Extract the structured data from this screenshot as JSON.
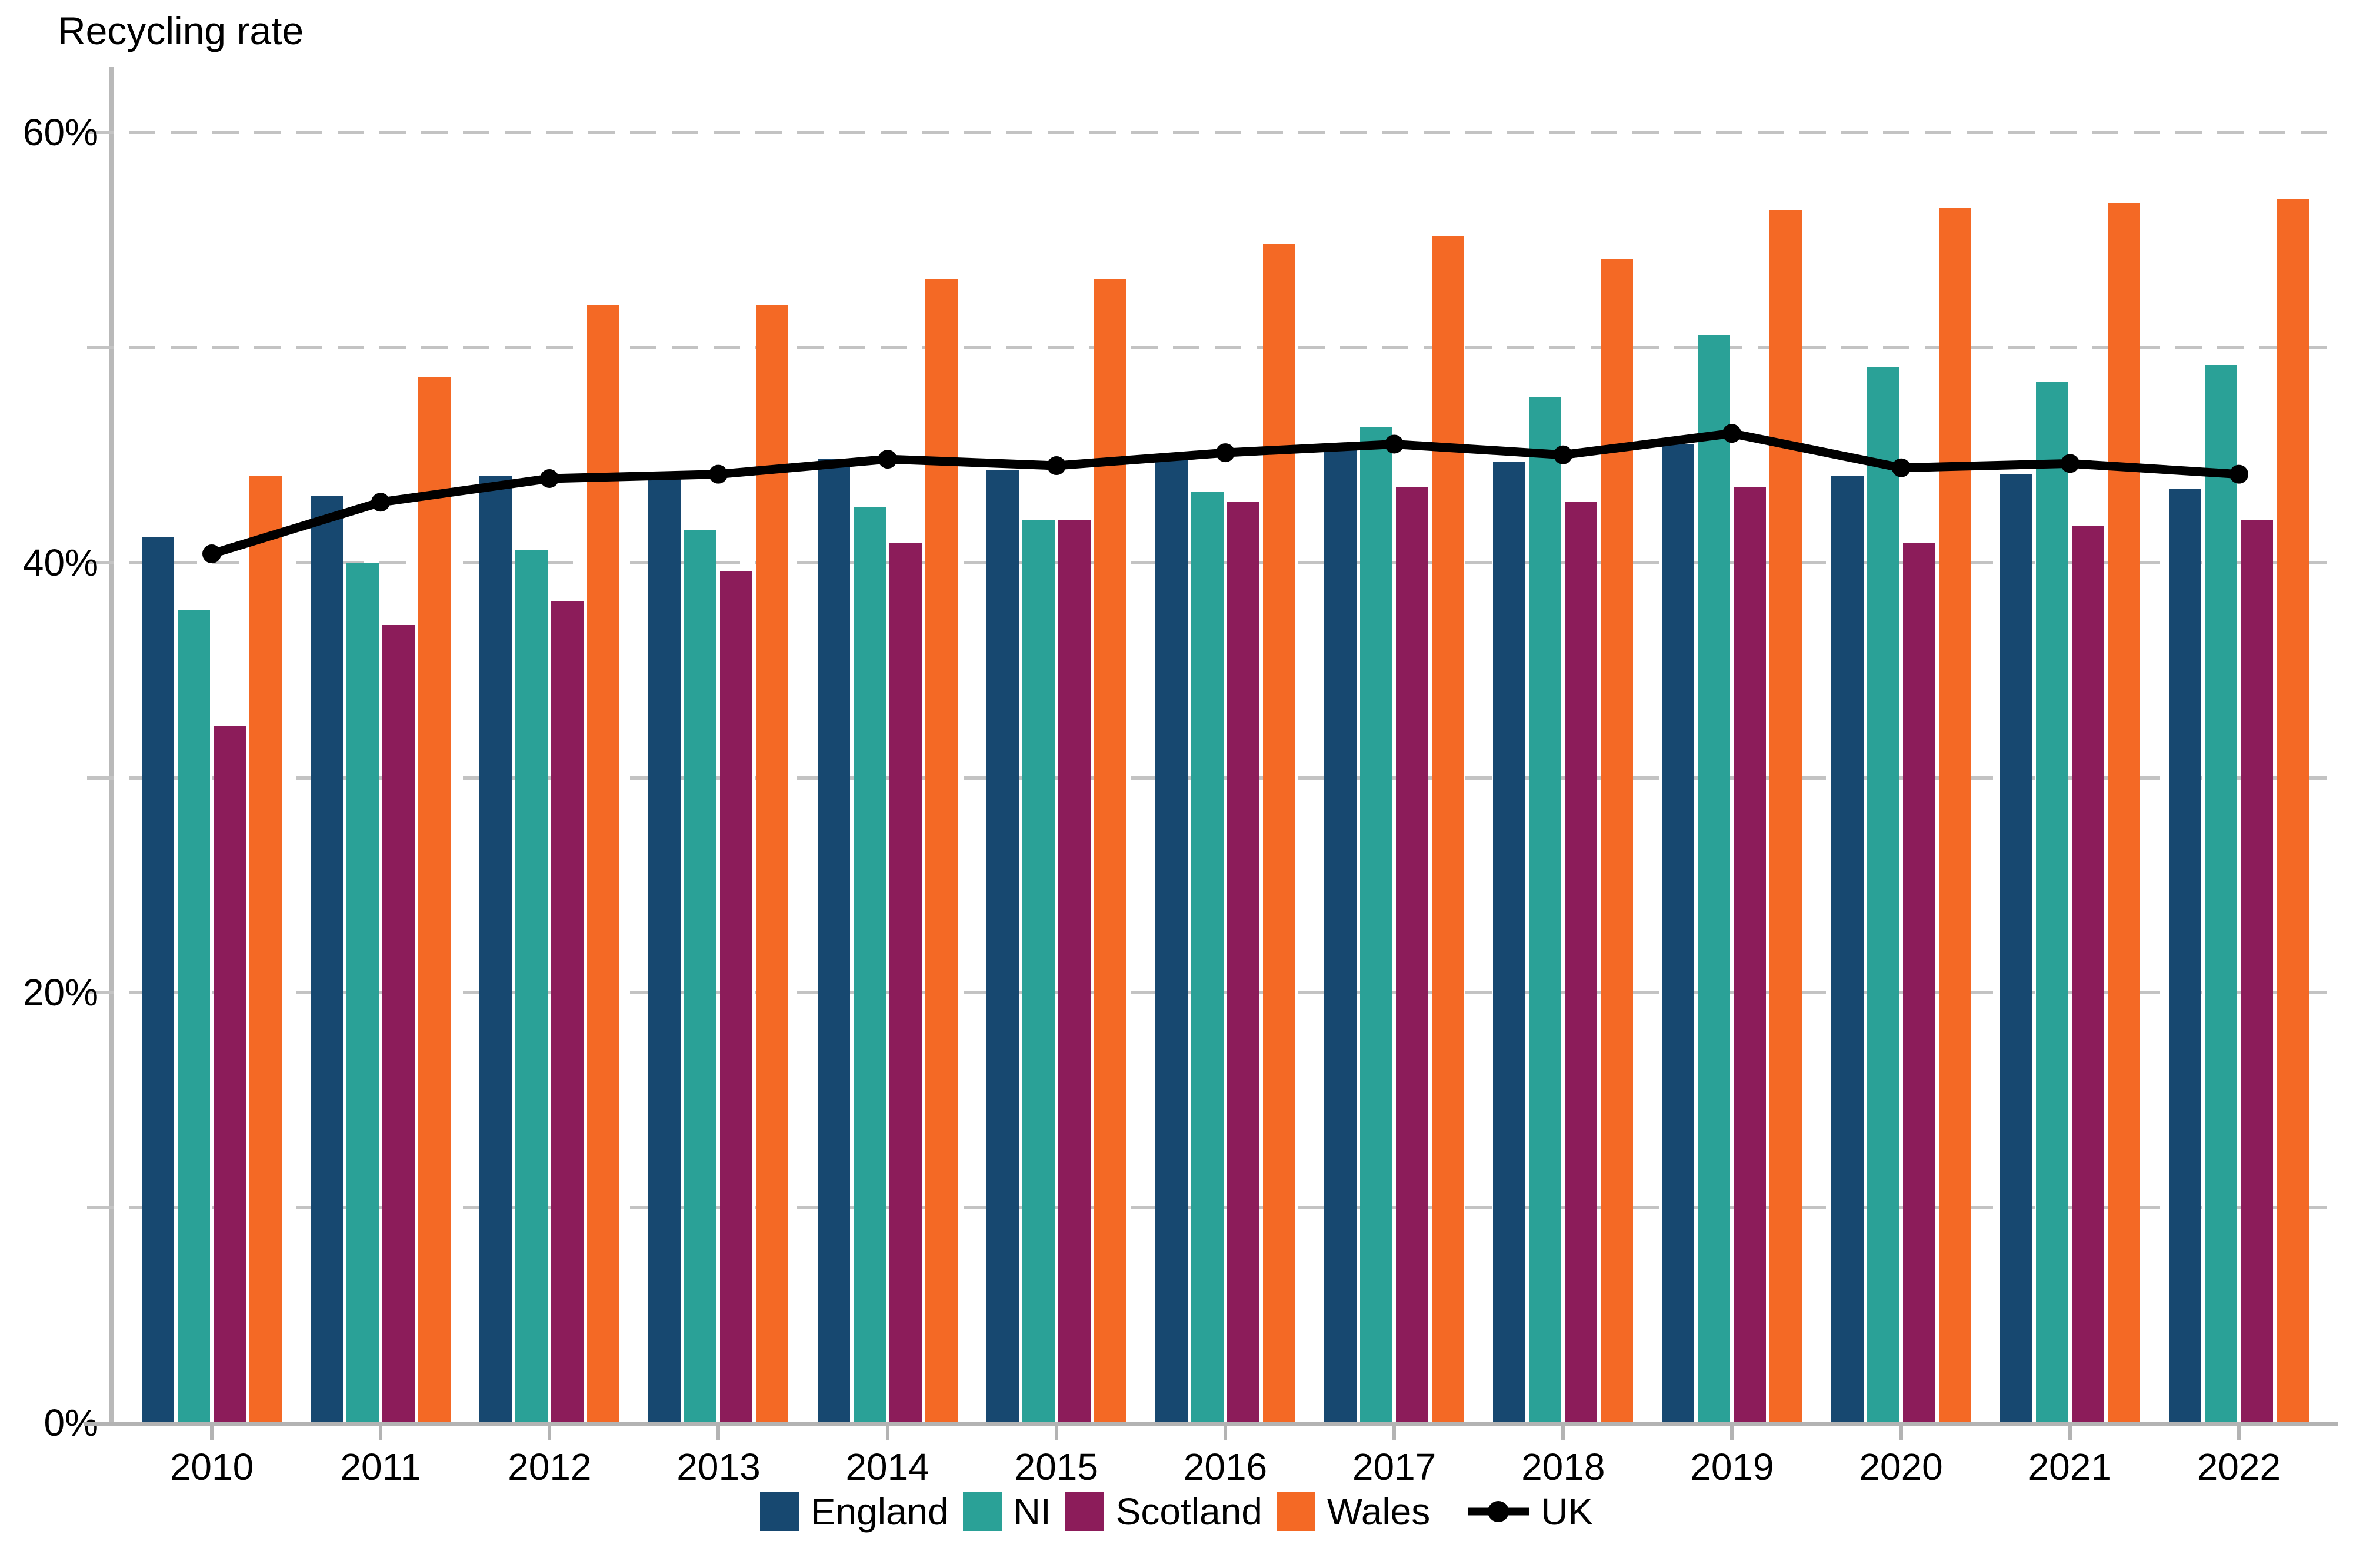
{
  "title": "Recycling rate",
  "colors": {
    "england": "#174870",
    "ni": "#2AA197",
    "scotland": "#8C1C5A",
    "wales": "#F46925",
    "uk_line": "#000000",
    "gridline": "#C3C3C3",
    "axis": "#B3B3B3",
    "text": "#000000"
  },
  "chart_data": {
    "type": "bar",
    "title": "Recycling rate",
    "categories": [
      "2010",
      "2011",
      "2012",
      "2013",
      "2014",
      "2015",
      "2016",
      "2017",
      "2018",
      "2019",
      "2020",
      "2021",
      "2022"
    ],
    "series": [
      {
        "name": "England",
        "type": "bar",
        "color": "#174870",
        "values": [
          41.2,
          43.1,
          44.0,
          44.0,
          44.8,
          44.3,
          44.9,
          45.2,
          44.7,
          45.5,
          44.0,
          44.1,
          43.4
        ]
      },
      {
        "name": "NI",
        "type": "bar",
        "color": "#2AA197",
        "values": [
          37.8,
          40.0,
          40.6,
          41.5,
          42.6,
          42.0,
          43.3,
          46.3,
          47.7,
          50.6,
          49.1,
          48.4,
          49.2
        ]
      },
      {
        "name": "Scotland",
        "type": "bar",
        "color": "#8C1C5A",
        "values": [
          32.4,
          37.1,
          38.2,
          39.6,
          40.9,
          42.0,
          42.8,
          43.5,
          42.8,
          43.5,
          40.9,
          41.7,
          42.0
        ]
      },
      {
        "name": "Wales",
        "type": "bar",
        "color": "#F46925",
        "values": [
          44.0,
          48.6,
          52.0,
          52.0,
          53.2,
          53.2,
          54.8,
          55.2,
          54.1,
          56.4,
          56.5,
          56.7,
          56.9
        ]
      },
      {
        "name": "UK",
        "type": "line",
        "color": "#000000",
        "values": [
          40.4,
          42.8,
          43.9,
          44.1,
          44.8,
          44.5,
          45.1,
          45.5,
          45.0,
          46.0,
          44.4,
          44.6,
          44.1
        ]
      }
    ],
    "xlabel": "",
    "ylabel": "Recycling rate",
    "ylim": [
      0,
      60
    ],
    "y_ticks": [
      {
        "label": "0%",
        "value": 0
      },
      {
        "label": "20%",
        "value": 20
      },
      {
        "label": "40%",
        "value": 40
      },
      {
        "label": "60%",
        "value": 60
      }
    ],
    "gridline_values": [
      10,
      20,
      30,
      40,
      50,
      60
    ],
    "grid": "horizontal dashed",
    "legend_position": "bottom"
  }
}
